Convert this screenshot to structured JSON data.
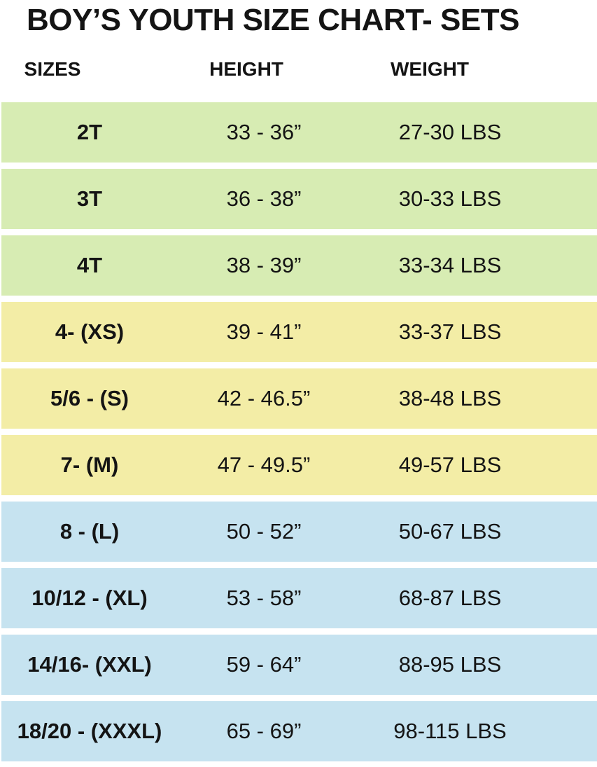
{
  "title": "BOY’S YOUTH SIZE CHART- SETS",
  "header": {
    "sizes": "SIZES",
    "height": "HEIGHT",
    "weight": "WEIGHT"
  },
  "colors": {
    "row_green": "#d7ecb3",
    "row_yellow": "#f3eda6",
    "row_blue": "#c6e3f0",
    "text": "#141414",
    "page_bg": "#ffffff"
  },
  "chart_data": {
    "type": "table",
    "title": "BOY’S YOUTH SIZE CHART- SETS",
    "columns": [
      "SIZES",
      "HEIGHT",
      "WEIGHT"
    ],
    "rows": [
      {
        "size": "2T",
        "height": "33 - 36”",
        "weight": "27-30 LBS",
        "group": "green"
      },
      {
        "size": "3T",
        "height": "36 - 38”",
        "weight": "30-33 LBS",
        "group": "green"
      },
      {
        "size": "4T",
        "height": "38 - 39”",
        "weight": "33-34 LBS",
        "group": "green"
      },
      {
        "size": "4- (XS)",
        "height": "39 - 41”",
        "weight": "33-37 LBS",
        "group": "yellow"
      },
      {
        "size": "5/6 - (S)",
        "height": "42 - 46.5”",
        "weight": "38-48 LBS",
        "group": "yellow"
      },
      {
        "size": "7- (M)",
        "height": "47 - 49.5”",
        "weight": "49-57 LBS",
        "group": "yellow"
      },
      {
        "size": "8 - (L)",
        "height": "50 - 52”",
        "weight": "50-67 LBS",
        "group": "blue"
      },
      {
        "size": "10/12 - (XL)",
        "height": "53 - 58”",
        "weight": "68-87 LBS",
        "group": "blue"
      },
      {
        "size": "14/16- (XXL)",
        "height": "59 - 64”",
        "weight": "88-95 LBS",
        "group": "blue"
      },
      {
        "size": "18/20 - (XXXL)",
        "height": "65 - 69”",
        "weight": "98-115 LBS",
        "group": "blue"
      }
    ],
    "group_colors": {
      "green": "#d7ecb3",
      "yellow": "#f3eda6",
      "blue": "#c6e3f0"
    },
    "layout": {
      "row_band_style": "full-width color bands with white gaps",
      "text_alignment": "centered per column"
    }
  }
}
